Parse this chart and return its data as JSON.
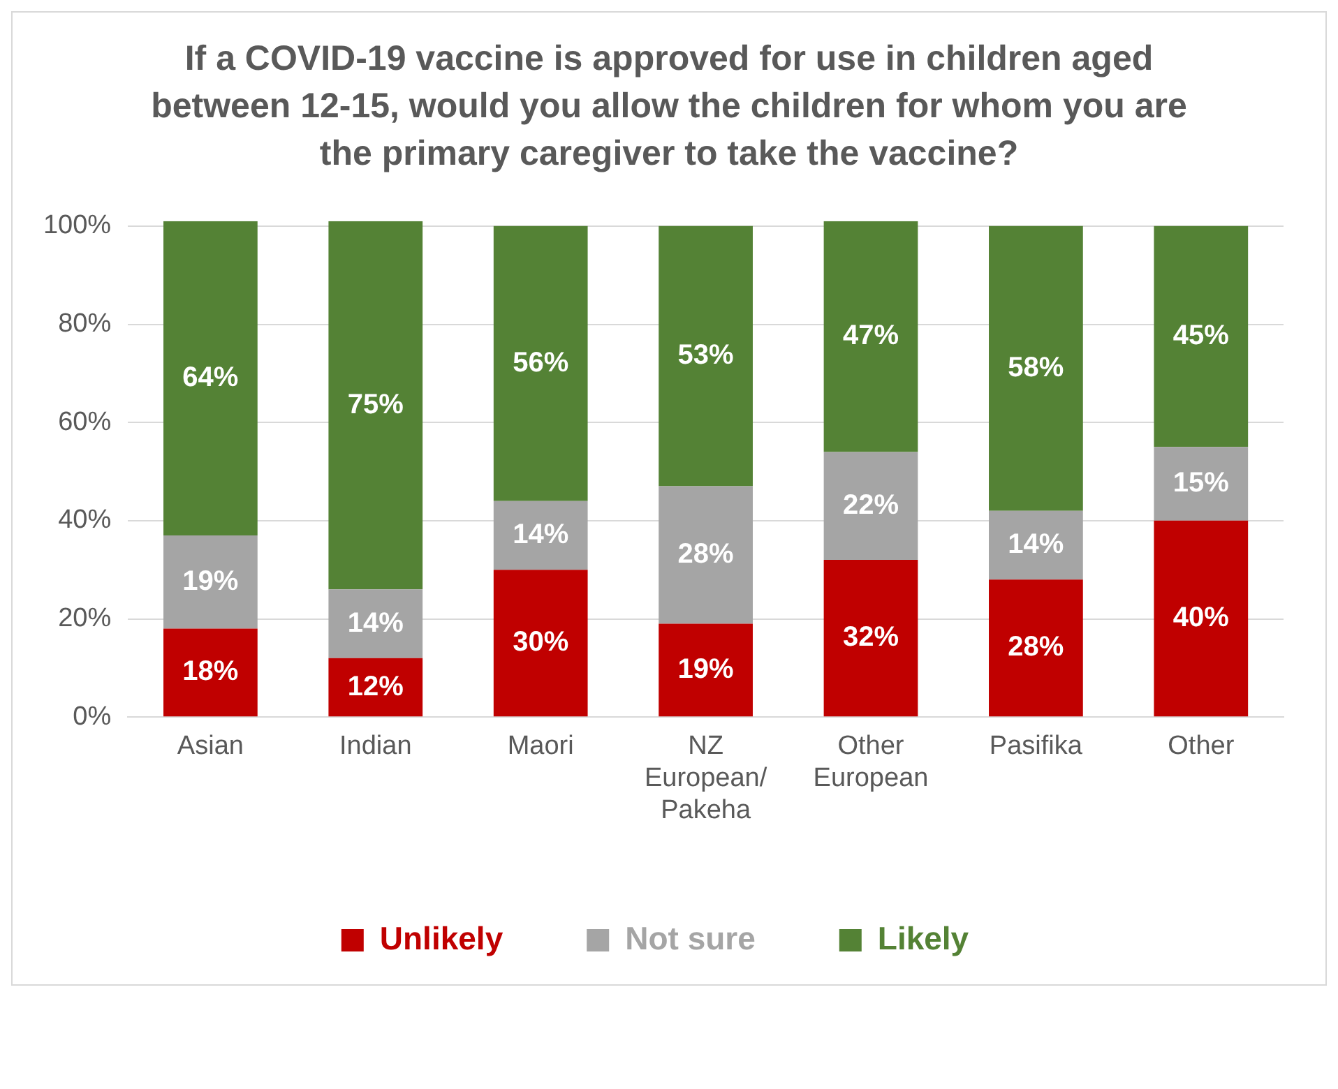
{
  "chart_data": {
    "type": "bar",
    "stacked": true,
    "title": "If a COVID-19 vaccine is approved for use in children aged between 12-15, would you allow the children for whom you are the primary caregiver to take the vaccine?",
    "categories": [
      "Asian",
      "Indian",
      "Maori",
      "NZ European/Pakeha",
      "Other European",
      "Pasifika",
      "Other"
    ],
    "series": [
      {
        "name": "Unlikely",
        "color": "#c00000",
        "values": [
          18,
          12,
          30,
          19,
          32,
          28,
          40
        ],
        "value_labels": [
          "18%",
          "12%",
          "30%",
          "19%",
          "32%",
          "28%",
          "40%"
        ]
      },
      {
        "name": "Not sure",
        "color": "#a5a5a5",
        "values": [
          19,
          14,
          14,
          28,
          22,
          14,
          15
        ],
        "value_labels": [
          "19%",
          "14%",
          "14%",
          "28%",
          "22%",
          "14%",
          "15%"
        ]
      },
      {
        "name": "Likely",
        "color": "#548235",
        "values": [
          64,
          75,
          56,
          53,
          47,
          58,
          45
        ],
        "value_labels": [
          "64%",
          "75%",
          "56%",
          "53%",
          "47%",
          "58%",
          "45%"
        ]
      }
    ],
    "ylim": [
      0,
      101
    ],
    "yticks": [
      {
        "value": 0,
        "label": "0%"
      },
      {
        "value": 20,
        "label": "20%"
      },
      {
        "value": 40,
        "label": "40%"
      },
      {
        "value": 60,
        "label": "60%"
      },
      {
        "value": 80,
        "label": "80%"
      },
      {
        "value": 100,
        "label": "100%"
      }
    ],
    "grid": "y",
    "legend": "bottom"
  }
}
